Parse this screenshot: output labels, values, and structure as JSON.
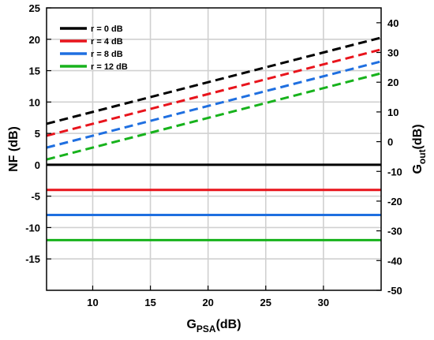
{
  "chart_data": {
    "type": "line",
    "title": "",
    "xlabel": "G",
    "xlabel_sub": "PSA",
    "xlabel_unit": "(dB)",
    "ylabel": "NF (dB)",
    "ylabel_right": "G",
    "ylabel_right_sub": "out",
    "ylabel_right_unit": "(dB)",
    "xlim": [
      6,
      35
    ],
    "ylim": [
      -20,
      25
    ],
    "ylim_right": [
      -50,
      45
    ],
    "xticks": [
      10,
      15,
      20,
      25,
      30
    ],
    "yticks": [
      -15,
      -10,
      -5,
      0,
      5,
      10,
      15,
      20,
      25
    ],
    "yticks_right": [
      -50,
      -40,
      -30,
      -20,
      -10,
      0,
      10,
      20,
      30,
      40
    ],
    "grid": true,
    "legend_position": "top-left",
    "series": [
      {
        "name": "r = 0 dB",
        "color": "#000000",
        "axis": "left",
        "style": "solid",
        "x": [
          6,
          35
        ],
        "y": [
          0,
          0
        ]
      },
      {
        "name": "r = 4 dB",
        "color": "#e8141c",
        "axis": "left",
        "style": "solid",
        "x": [
          6,
          35
        ],
        "y": [
          -4,
          -4
        ]
      },
      {
        "name": "r = 8 dB",
        "color": "#1f6fe0",
        "axis": "left",
        "style": "solid",
        "x": [
          6,
          35
        ],
        "y": [
          -8,
          -8
        ]
      },
      {
        "name": "r = 12 dB",
        "color": "#17b21c",
        "axis": "left",
        "style": "solid",
        "x": [
          6,
          35
        ],
        "y": [
          -12,
          -12
        ]
      },
      {
        "color": "#000000",
        "axis": "right",
        "style": "dashed",
        "x": [
          6,
          35
        ],
        "y": [
          6,
          35
        ]
      },
      {
        "color": "#e8141c",
        "axis": "right",
        "style": "dashed",
        "x": [
          6,
          35
        ],
        "y": [
          2,
          31
        ]
      },
      {
        "color": "#1f6fe0",
        "axis": "right",
        "style": "dashed",
        "x": [
          6,
          35
        ],
        "y": [
          -2,
          27
        ]
      },
      {
        "color": "#17b21c",
        "axis": "right",
        "style": "dashed",
        "x": [
          6,
          35
        ],
        "y": [
          -6,
          23
        ]
      }
    ]
  }
}
